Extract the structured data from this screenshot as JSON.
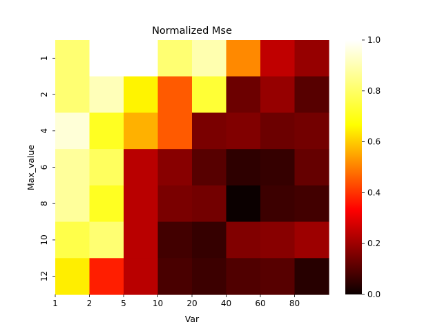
{
  "chart_data": {
    "type": "heatmap",
    "title": "Normalized Mse",
    "xlabel": "Var",
    "ylabel": "Max_value",
    "x_tick_labels": [
      "1",
      "2",
      "5",
      "10",
      "20",
      "40",
      "60",
      "80"
    ],
    "y_tick_labels": [
      "1",
      "2",
      "4",
      "6",
      "8",
      "10",
      "12"
    ],
    "n_cols": 8,
    "n_rows": 7,
    "values": [
      [
        0.86,
        1.0,
        1.0,
        0.86,
        0.92,
        0.57,
        0.26,
        0.2
      ],
      [
        0.86,
        0.93,
        0.73,
        0.5,
        0.8,
        0.14,
        0.2,
        0.11
      ],
      [
        0.96,
        0.78,
        0.63,
        0.5,
        0.16,
        0.17,
        0.14,
        0.15
      ],
      [
        0.9,
        0.84,
        0.25,
        0.18,
        0.11,
        0.05,
        0.06,
        0.13
      ],
      [
        0.9,
        0.78,
        0.25,
        0.16,
        0.15,
        0.0,
        0.07,
        0.08
      ],
      [
        0.82,
        0.86,
        0.25,
        0.08,
        0.06,
        0.17,
        0.18,
        0.21
      ],
      [
        0.72,
        0.41,
        0.25,
        0.09,
        0.07,
        0.1,
        0.11,
        0.04
      ]
    ],
    "colormap": "hot",
    "colorbar": {
      "min": 0.0,
      "max": 1.0,
      "tick_labels": [
        "0.0",
        "0.2",
        "0.4",
        "0.6",
        "0.8",
        "1.0"
      ],
      "tick_values": [
        0.0,
        0.2,
        0.4,
        0.6,
        0.8,
        1.0
      ]
    },
    "grid": false,
    "legend": "none"
  }
}
